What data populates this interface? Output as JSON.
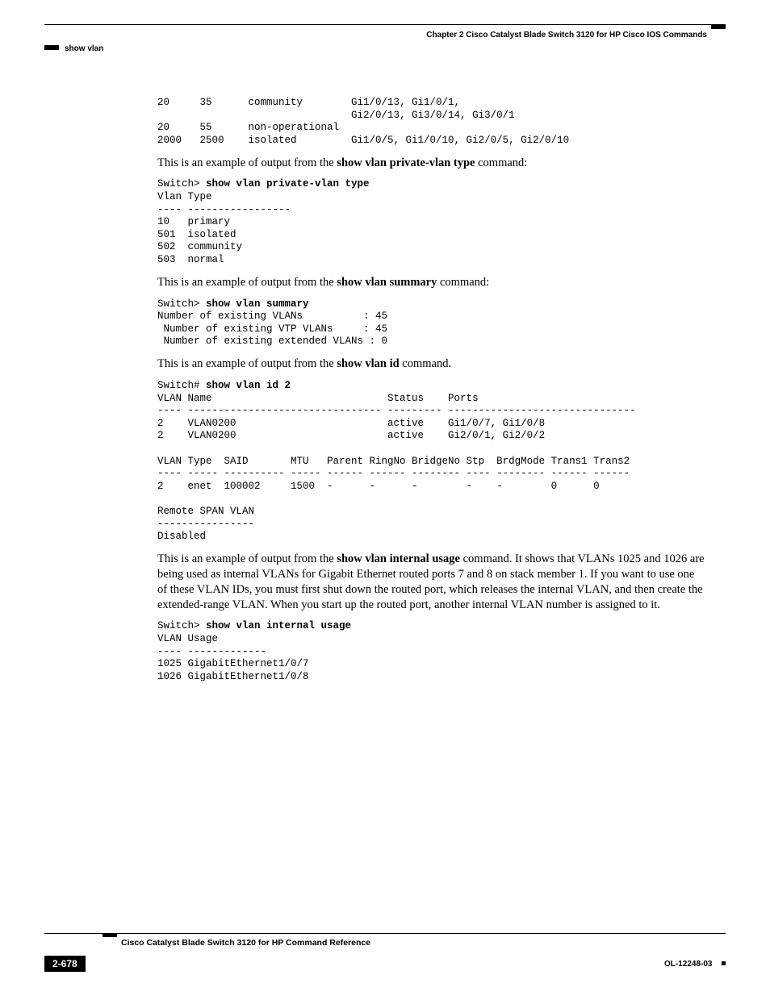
{
  "header": {
    "chapter": "Chapter 2  Cisco Catalyst Blade Switch 3120 for HP Cisco IOS Commands",
    "section": "show vlan"
  },
  "blocks": {
    "pvlan_output": "20     35      community        Gi1/0/13, Gi1/0/1, \n                                Gi2/0/13, Gi3/0/14, Gi3/0/1\n20     55      non-operational \n2000   2500    isolated         Gi1/0/5, Gi1/0/10, Gi2/0/5, Gi2/0/10 ",
    "intro_type_prefix": "This is an example of output from the ",
    "intro_type_cmd": "show vlan private-vlan type",
    "intro_type_suffix": " command:",
    "type_prompt": "Switch> ",
    "type_cmd": "show vlan private-vlan type",
    "type_output": "Vlan Type\n---- -----------------\n10   primary\n501  isolated\n502  community\n503  normal",
    "intro_summary_prefix": "This is an example of output from the ",
    "intro_summary_cmd": "show vlan summary",
    "intro_summary_suffix": " command:",
    "summary_prompt": "Switch> ",
    "summary_cmd": "show vlan summary",
    "summary_output": "Number of existing VLANs          : 45\n Number of existing VTP VLANs     : 45\n Number of existing extended VLANs : 0",
    "intro_id_prefix": "This is an example of output from the ",
    "intro_id_cmd": "show vlan id",
    "intro_id_suffix": " command.",
    "id_prompt": "Switch# ",
    "id_cmd": "show vlan id 2",
    "id_output": "VLAN Name                             Status    Ports\n---- -------------------------------- --------- -------------------------------\n2    VLAN0200                         active    Gi1/0/7, Gi1/0/8\n2    VLAN0200                         active    Gi2/0/1, Gi2/0/2\n\nVLAN Type  SAID       MTU   Parent RingNo BridgeNo Stp  BrdgMode Trans1 Trans2\n---- ----- ---------- ----- ------ ------ -------- ---- -------- ------ ------\n2    enet  100002     1500  -      -      -        -    -        0      0\n\nRemote SPAN VLAN\n----------------\nDisabled",
    "intro_internal_prefix": "This is an example of output from the ",
    "intro_internal_cmd": "show vlan internal usage",
    "intro_internal_suffix": " command. It shows that VLANs 1025 and 1026 are being used as internal VLANs for Gigabit Ethernet routed ports 7 and 8 on stack member 1. If you want to use one of these VLAN IDs, you must first shut down the routed port, which releases the internal VLAN, and then create the extended-range VLAN. When you start up the routed port, another internal VLAN number is assigned to it.",
    "internal_prompt": "Switch> ",
    "internal_cmd": "show vlan internal usage",
    "internal_output": "VLAN Usage\n---- -------------\n1025 GigabitEthernet1/0/7\n1026 GigabitEthernet1/0/8"
  },
  "footer": {
    "title": "Cisco Catalyst Blade Switch 3120 for HP Command Reference",
    "page": "2-678",
    "docid": "OL-12248-03"
  }
}
